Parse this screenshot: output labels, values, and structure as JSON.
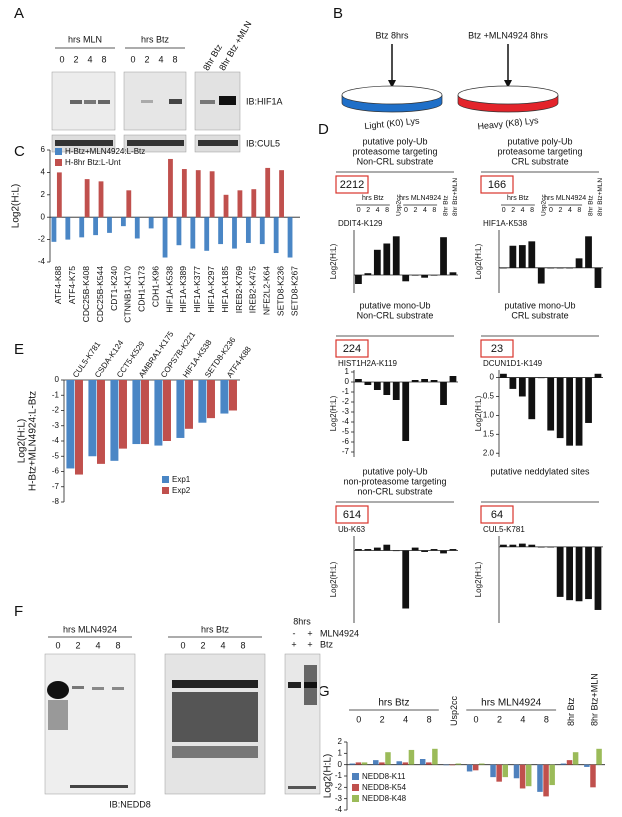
{
  "panel_labels": [
    "A",
    "B",
    "C",
    "D",
    "E",
    "F",
    "G"
  ],
  "panel_a": {
    "groups": [
      "hrs MLN",
      "hrs Btz"
    ],
    "lanes": [
      "0",
      "2",
      "4",
      "8",
      "0",
      "2",
      "4",
      "8"
    ],
    "extra_lanes": [
      "8hr Btz",
      "8hr Btz +MLN"
    ],
    "antibodies": [
      "IB:HIF1A",
      "IB:CUL5"
    ]
  },
  "panel_b": {
    "treatments": [
      "Btz 8hrs",
      "Btz +MLN4924 8hrs"
    ],
    "labels": [
      "Light (K0) Lys",
      "Heavy (K8) Lys"
    ]
  },
  "panel_f": {
    "groups": [
      "hrs MLN4924",
      "hrs Btz"
    ],
    "lanes": [
      "0",
      "2",
      "4",
      "8",
      "0",
      "2",
      "4",
      "8"
    ],
    "time": "8hrs",
    "treatments": [
      "MLN4924",
      "Btz"
    ],
    "signs": [
      [
        "-",
        "+"
      ],
      [
        "+",
        "+"
      ]
    ],
    "antibody": "IB:NEDD8"
  },
  "chart_data": [
    {
      "type": "bar",
      "ylabel": "Log2(H:L)",
      "legend": "upper left",
      "categories": [
        "ATF4-K88",
        "ATF4-K75",
        "CDC25B-K408",
        "CDC25B-K544",
        "CDT1-K240",
        "CTNNB1-K170",
        "CDH1-K173",
        "CDH1-K96",
        "HIF1A-K538",
        "HIF1A-K389",
        "HIF1A-K377",
        "HIF1A-K297",
        "HIF1A-K185",
        "IREB2-K769",
        "IREB2-K475",
        "NFE2L2-K64",
        "SETD8-K236",
        "SETD8-K267"
      ],
      "series": [
        {
          "name": "H-Btz+MLN4924:L-Btz",
          "color": "#4a86c5",
          "values": [
            -2.2,
            -2.0,
            -1.8,
            -1.6,
            -1.4,
            -0.8,
            -1.9,
            -1.0,
            -3.6,
            -2.5,
            -2.8,
            -3.0,
            -2.4,
            -2.8,
            -2.3,
            -2.4,
            -3.2,
            -3.6
          ]
        },
        {
          "name": "H-8hr Btz:L-Unt",
          "color": "#c0504d",
          "values": [
            4.0,
            null,
            3.4,
            3.2,
            null,
            2.4,
            null,
            null,
            5.2,
            4.3,
            4.2,
            4.1,
            2.0,
            2.4,
            2.5,
            4.4,
            4.2,
            null
          ]
        }
      ],
      "ylim": [
        -4,
        6
      ],
      "yticks": [
        6,
        4,
        2,
        0,
        -2,
        -4
      ]
    },
    {
      "type": "bar",
      "title": [
        "putative poly-Ub",
        "proteasome targeting",
        "Non-CRL substrate"
      ],
      "count": 2212,
      "site": "DDIT4-K129",
      "ylabel": "Log2(H:L)",
      "group_labels": [
        "hrs Btz",
        "hrs MLN4924"
      ],
      "categories": [
        "0",
        "2",
        "4",
        "8",
        "Usp2cc",
        "0",
        "2",
        "4",
        "8",
        "8hr Btz",
        "8hr Btz+MLN"
      ],
      "values": [
        -1.0,
        0.2,
        2.8,
        3.5,
        4.3,
        -0.7,
        0.0,
        -0.3,
        0.0,
        4.2,
        0.3
      ],
      "color": "#111111",
      "ylim": [
        -2,
        5
      ]
    },
    {
      "type": "bar",
      "title": [
        "putative poly-Ub",
        "proteasome targeting",
        "CRL substrate"
      ],
      "count": 166,
      "site": "HIF1A-K538",
      "ylabel": "Log2(H:L)",
      "group_labels": [
        "hrs Btz",
        "hrs MLN4924"
      ],
      "categories": [
        "0",
        "2",
        "4",
        "8",
        "Usp2cc",
        "0",
        "2",
        "4",
        "8",
        "8hr Btz",
        "8hr Btz+MLN"
      ],
      "values": [
        0.0,
        3.5,
        3.6,
        4.2,
        -2.5,
        0.0,
        0.0,
        0.0,
        1.5,
        5.0,
        -3.2
      ],
      "color": "#111111",
      "ylim": [
        -4,
        6
      ]
    },
    {
      "type": "bar",
      "title": [
        "putative mono-Ub",
        "Non-CRL substrate"
      ],
      "count": 224,
      "site": "HIST1H2A-K119",
      "ylabel": "Log2(H:L)",
      "values": [
        0.3,
        -0.3,
        -0.8,
        -1.3,
        -1.8,
        -5.9,
        0.2,
        0.3,
        0.2,
        -2.3,
        0.6
      ],
      "color": "#111111",
      "ylim": [
        -7.5,
        1.2
      ],
      "yticks": [
        1,
        0,
        -1,
        -2,
        -3,
        -4,
        -5,
        -6,
        -7
      ]
    },
    {
      "type": "bar",
      "title": [
        "putative mono-Ub",
        "CRL substrate"
      ],
      "count": 23,
      "site": "DCUN1D1-K149",
      "ylabel": "Log2(H:L)",
      "values": [
        0.1,
        -0.3,
        -0.5,
        -1.1,
        0.0,
        -1.4,
        -1.6,
        -1.8,
        -1.8,
        -1.2,
        0.1
      ],
      "color": "#111111",
      "ylim": [
        -2.1,
        0.2
      ],
      "yticks": [
        0,
        {
          "value": -0.5,
          "label": "0.5"
        },
        {
          "value": -1.0,
          "label": "1.0"
        },
        {
          "value": -1.5,
          "label": "1.5"
        },
        {
          "value": -2.0,
          "label": "2.0"
        }
      ]
    },
    {
      "type": "bar",
      "title": [
        "putative poly-Ub",
        "non-proteasome targeting",
        "non-CRL substrate"
      ],
      "count": 614,
      "site": "Ub-K63",
      "ylabel": "Log2(H:L)",
      "values": [
        0.1,
        0.1,
        0.2,
        0.4,
        0.0,
        -4.0,
        0.2,
        -0.1,
        0.1,
        -0.2,
        0.1
      ],
      "color": "#111111",
      "ylim": [
        -5,
        1
      ]
    },
    {
      "type": "bar",
      "title": [
        "putative neddylated sites"
      ],
      "count": 64,
      "site": "CUL5-K781",
      "ylabel": "Log2(H:L)",
      "values": [
        0.2,
        0.2,
        0.3,
        0.2,
        0.0,
        0.0,
        -4.6,
        -4.9,
        -5.0,
        -4.8,
        -5.8
      ],
      "color": "#111111",
      "ylim": [
        -7,
        1
      ]
    },
    {
      "type": "bar",
      "ylabel": [
        "Log2(H:L)",
        "H-Btz+MLN4924:L-Btz"
      ],
      "legend": "lower right",
      "categories": [
        "CUL5-K781",
        "CSDA-K124",
        "CCT5-K529",
        "AMBRA1-K175",
        "COPS7B-K221",
        "HIF1A-K538",
        "SETD8-K236",
        "ATF4-K88"
      ],
      "series": [
        {
          "name": "Exp1",
          "color": "#4a86c5",
          "values": [
            -5.8,
            -5.0,
            -5.3,
            -4.2,
            -4.3,
            -3.8,
            -2.8,
            -2.2
          ]
        },
        {
          "name": "Exp2",
          "color": "#c0504d",
          "values": [
            -6.2,
            -5.5,
            -4.5,
            -4.2,
            -4.0,
            -3.2,
            -2.5,
            -2.0
          ]
        }
      ],
      "ylim": [
        -8,
        0
      ],
      "yticks": [
        0,
        -1,
        -2,
        -3,
        -4,
        -5,
        -6,
        -7,
        -8
      ]
    },
    {
      "type": "bar",
      "ylabel": "Log2(H:L)",
      "legend": "lower left",
      "group_labels": [
        "hrs Btz",
        "hrs MLN4924"
      ],
      "categories": [
        "0",
        "2",
        "4",
        "8",
        "Usp2cc",
        "0",
        "2",
        "4",
        "8",
        "8hr Btz",
        "8hr Btz+MLN"
      ],
      "series": [
        {
          "name": "NEDD8-K11",
          "color": "#4f81bd",
          "values": [
            0.1,
            0.4,
            0.3,
            0.5,
            0.0,
            -0.6,
            -1.1,
            -1.2,
            -2.4,
            0.1,
            -0.2
          ]
        },
        {
          "name": "NEDD8-K54",
          "color": "#c0504d",
          "values": [
            0.2,
            0.2,
            0.2,
            0.2,
            0.0,
            -0.5,
            -1.5,
            -2.1,
            -2.8,
            0.4,
            -2.0
          ]
        },
        {
          "name": "NEDD8-K48",
          "color": "#9bbb59",
          "values": [
            0.2,
            1.1,
            1.3,
            1.4,
            0.1,
            0.1,
            -1.1,
            -1.9,
            -1.8,
            1.1,
            1.4
          ]
        }
      ],
      "ylim": [
        -4,
        2
      ],
      "yticks": [
        2,
        1,
        0,
        -1,
        -2,
        -3,
        -4
      ]
    }
  ]
}
